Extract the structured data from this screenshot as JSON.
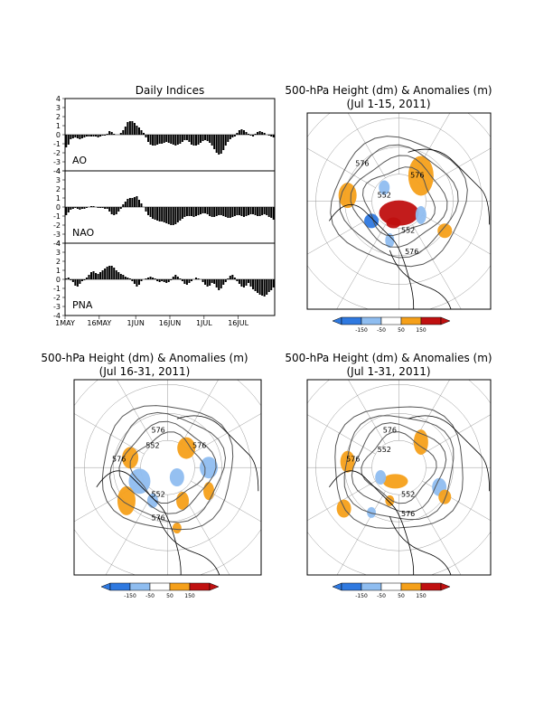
{
  "indices": {
    "title": "Daily Indices",
    "x_tick_labels": [
      "1MAY",
      "16MAY",
      "1JUN",
      "16JUN",
      "1JUL",
      "16JUL"
    ],
    "y_tick_labels": [
      "4",
      "3",
      "2",
      "1",
      "0",
      "-1",
      "-2",
      "-3",
      "-4"
    ],
    "ylim": [
      -4,
      4
    ],
    "panels": [
      {
        "name": "AO",
        "values": [
          -1.4,
          -1.1,
          -0.5,
          -0.4,
          -0.3,
          -0.4,
          -0.5,
          -0.4,
          -0.3,
          -0.2,
          -0.2,
          -0.2,
          -0.2,
          -0.2,
          -0.3,
          -0.2,
          -0.1,
          -0.1,
          0.1,
          0.4,
          0.3,
          0.1,
          0.0,
          0.0,
          0.2,
          0.5,
          0.9,
          1.4,
          1.5,
          1.5,
          1.3,
          1.0,
          0.8,
          0.5,
          0.2,
          -0.3,
          -0.8,
          -1.1,
          -1.2,
          -1.2,
          -1.1,
          -1.0,
          -1.0,
          -0.9,
          -0.8,
          -0.9,
          -1.0,
          -1.1,
          -1.2,
          -1.1,
          -1.0,
          -0.8,
          -0.6,
          -0.6,
          -0.8,
          -1.1,
          -1.2,
          -1.2,
          -1.1,
          -0.9,
          -0.7,
          -0.6,
          -0.7,
          -0.9,
          -1.2,
          -1.6,
          -2.0,
          -2.2,
          -2.1,
          -1.7,
          -1.2,
          -0.8,
          -0.5,
          -0.3,
          -0.2,
          0.2,
          0.5,
          0.6,
          0.5,
          0.3,
          0.1,
          -0.1,
          -0.2,
          0.1,
          0.3,
          0.4,
          0.3,
          0.2,
          0.0,
          -0.1,
          -0.2,
          -0.3
        ]
      },
      {
        "name": "NAO",
        "values": [
          -0.9,
          -0.6,
          -0.3,
          -0.2,
          -0.1,
          -0.2,
          -0.3,
          -0.2,
          -0.2,
          -0.1,
          0.0,
          0.1,
          0.1,
          0.0,
          -0.1,
          -0.1,
          -0.1,
          -0.2,
          -0.2,
          -0.5,
          -0.8,
          -0.9,
          -0.8,
          -0.5,
          -0.2,
          0.3,
          0.6,
          0.9,
          1.0,
          1.0,
          1.1,
          1.2,
          0.8,
          0.4,
          0.0,
          -0.5,
          -0.9,
          -1.1,
          -1.3,
          -1.4,
          -1.5,
          -1.6,
          -1.6,
          -1.7,
          -1.8,
          -1.9,
          -2.0,
          -2.0,
          -1.9,
          -1.7,
          -1.5,
          -1.3,
          -1.1,
          -1.0,
          -1.0,
          -1.0,
          -1.1,
          -1.0,
          -0.9,
          -0.8,
          -0.7,
          -0.7,
          -0.8,
          -1.0,
          -1.1,
          -1.1,
          -1.0,
          -0.9,
          -0.9,
          -1.0,
          -1.1,
          -1.2,
          -1.2,
          -1.1,
          -1.0,
          -0.9,
          -0.9,
          -1.0,
          -1.1,
          -1.0,
          -0.9,
          -0.8,
          -0.8,
          -0.9,
          -1.0,
          -1.0,
          -0.9,
          -0.8,
          -0.9,
          -1.1,
          -1.2,
          -1.4
        ]
      },
      {
        "name": "PNA",
        "values": [
          0.1,
          0.2,
          -0.1,
          -0.3,
          -0.7,
          -0.8,
          -0.5,
          -0.2,
          -0.1,
          0.2,
          0.5,
          0.8,
          0.9,
          0.7,
          0.6,
          0.8,
          1.0,
          1.2,
          1.4,
          1.5,
          1.5,
          1.3,
          1.0,
          0.8,
          0.6,
          0.5,
          0.3,
          0.2,
          0.1,
          -0.2,
          -0.5,
          -0.8,
          -0.6,
          -0.2,
          0.0,
          0.1,
          0.2,
          0.3,
          0.2,
          0.1,
          -0.2,
          -0.3,
          -0.2,
          -0.3,
          -0.4,
          -0.3,
          -0.1,
          0.3,
          0.5,
          0.3,
          0.1,
          -0.2,
          -0.5,
          -0.6,
          -0.4,
          -0.2,
          0.0,
          0.2,
          0.1,
          0.0,
          -0.3,
          -0.6,
          -0.8,
          -0.7,
          -0.4,
          -0.5,
          -0.9,
          -1.2,
          -1.0,
          -0.6,
          -0.3,
          0.1,
          0.4,
          0.5,
          0.2,
          -0.2,
          -0.5,
          -0.8,
          -0.9,
          -0.7,
          -0.4,
          -0.8,
          -1.1,
          -1.3,
          -1.5,
          -1.7,
          -1.8,
          -1.9,
          -1.7,
          -1.4,
          -1.2,
          -0.9
        ]
      }
    ]
  },
  "maps": [
    {
      "title": "500-hPa Height (dm) & Anomalies (m)",
      "subtitle": "(Jul 1-15, 2011)",
      "labels": [
        "576",
        "552",
        "576",
        "552",
        "576"
      ]
    },
    {
      "title": "500-hPa Height (dm) & Anomalies (m)",
      "subtitle": "(Jul 16-31, 2011)",
      "labels": [
        "576",
        "552",
        "576",
        "576",
        "552",
        "576"
      ]
    },
    {
      "title": "500-hPa Height (dm) & Anomalies (m)",
      "subtitle": "(Jul 1-31, 2011)",
      "labels": [
        "576",
        "552",
        "576",
        "552",
        "576"
      ]
    }
  ],
  "colorbar": {
    "labels": [
      "-150",
      "-50",
      "50",
      "150"
    ],
    "colors": {
      "strong_neg": "#2f79e0",
      "neg": "#8fbdf0",
      "pos": "#f5a01a",
      "strong_pos": "#c01010"
    }
  }
}
